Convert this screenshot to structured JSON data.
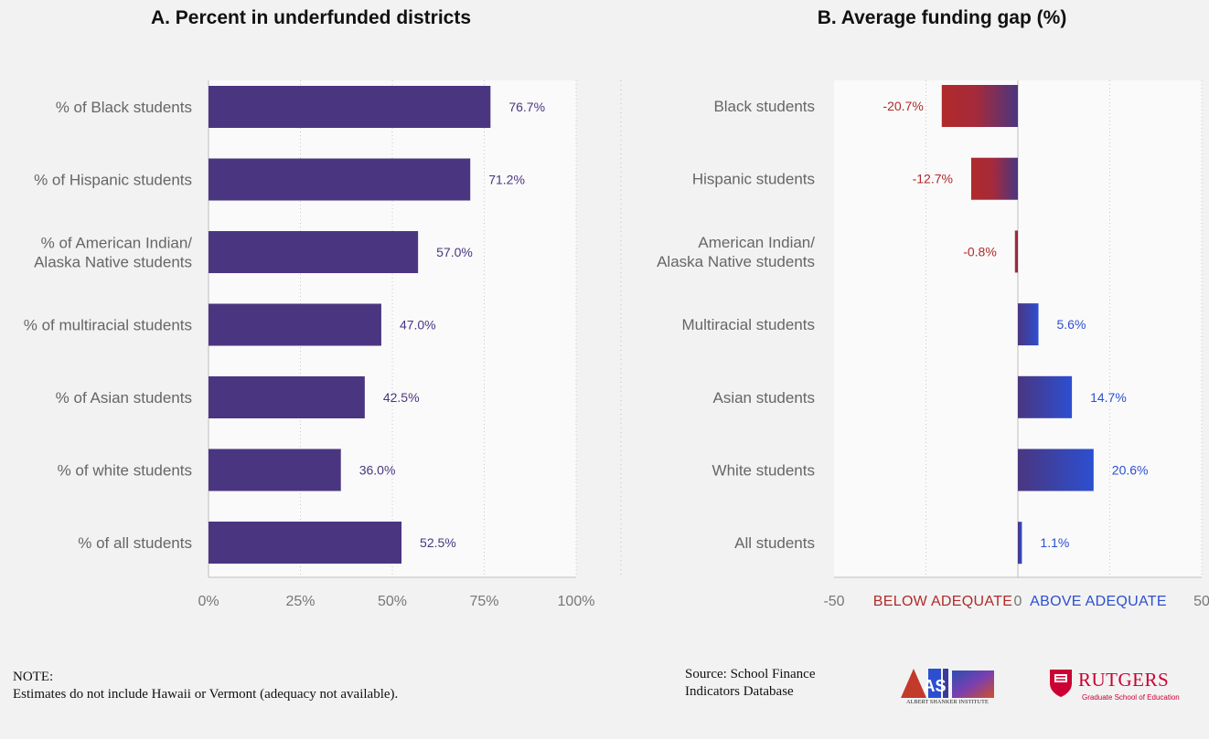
{
  "colors": {
    "bar_purple": "#4a3680",
    "below_red": "#b12a2a",
    "above_blue": "#2c4fd0",
    "label_purple": "#4a3680",
    "label_red": "#b12a2a",
    "label_blue": "#2c4fd0"
  },
  "chart_data": [
    {
      "type": "bar",
      "orientation": "horizontal",
      "title": "A. Percent in underfunded districts",
      "categories": [
        [
          "% of Black students"
        ],
        [
          "% of Hispanic students"
        ],
        [
          "% of American Indian/",
          "Alaska Native students"
        ],
        [
          "% of multiracial students"
        ],
        [
          "% of Asian students"
        ],
        [
          "% of white students"
        ],
        [
          "% of all students"
        ]
      ],
      "values": [
        76.7,
        71.2,
        57.0,
        47.0,
        42.5,
        36.0,
        52.5
      ],
      "value_labels": [
        "76.7%",
        "71.2%",
        "57.0%",
        "47.0%",
        "42.5%",
        "36.0%",
        "52.5%"
      ],
      "xlim": [
        0,
        100
      ],
      "x_ticks": [
        0,
        25,
        50,
        75,
        100
      ],
      "x_tick_labels": [
        "0%",
        "25%",
        "50%",
        "75%",
        "100%"
      ],
      "grid": true
    },
    {
      "type": "bar",
      "orientation": "horizontal",
      "title": "B. Average funding gap (%)",
      "categories": [
        [
          "Black students"
        ],
        [
          "Hispanic students"
        ],
        [
          "American Indian/",
          "Alaska Native students"
        ],
        [
          "Multiracial students"
        ],
        [
          "Asian students"
        ],
        [
          "White students"
        ],
        [
          "All students"
        ]
      ],
      "values": [
        -20.7,
        -12.7,
        -0.8,
        5.6,
        14.7,
        20.6,
        1.1
      ],
      "value_labels": [
        "-20.7%",
        "-12.7%",
        "-0.8%",
        "5.6%",
        "14.7%",
        "20.6%",
        "1.1%"
      ],
      "xlim": [
        -50,
        50
      ],
      "x_ticks": [
        -50,
        0,
        50
      ],
      "x_tick_labels": [
        "-50",
        "0",
        "50"
      ],
      "below_label": "BELOW ADEQUATE",
      "above_label": "ABOVE ADEQUATE",
      "grid": true
    }
  ],
  "footer": {
    "note_heading": "NOTE:",
    "note_text": "Estimates do not include Hawaii or Vermont (adequacy not available).",
    "source_text": "Source:  School Finance Indicators Database",
    "asi_mark": "AS",
    "asi_name": "ALBERT SHANKER INSTITUTE",
    "rutgers_name": "RUTGERS",
    "rutgers_sub": "Graduate School of Education"
  }
}
